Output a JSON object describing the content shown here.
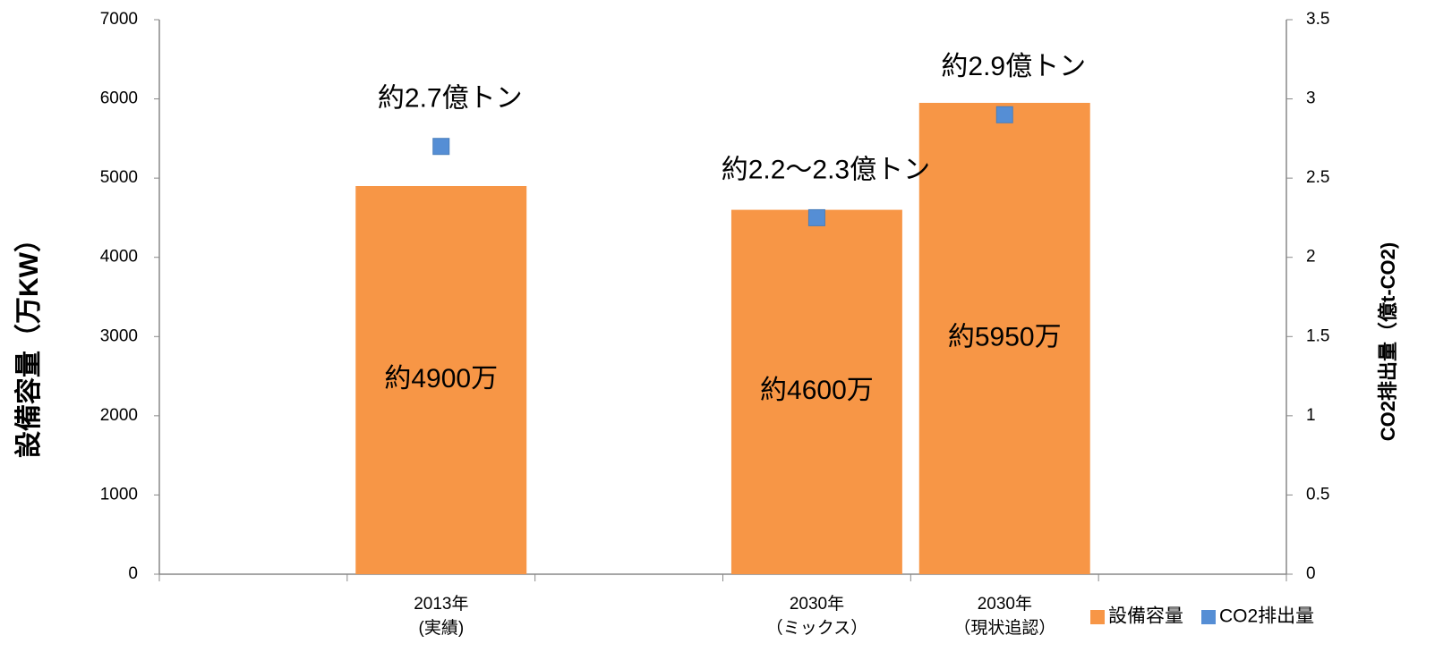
{
  "chart_data": {
    "type": "bar",
    "categories": [
      null,
      "2013年\n(実績)",
      null,
      "2030年\n（ミックス）",
      "2030年\n（現状追認）",
      null
    ],
    "series": [
      {
        "name": "設備容量",
        "type": "bar",
        "color": "#f79646",
        "values": [
          null,
          4900,
          null,
          4600,
          5950,
          null
        ],
        "value_labels": [
          null,
          "約4900万",
          null,
          "約4600万",
          "約5950万",
          null
        ]
      },
      {
        "name": "CO2排出量",
        "type": "scatter",
        "axis": "y2",
        "color": "#558ed5",
        "values": [
          null,
          2.7,
          null,
          2.25,
          2.9,
          null
        ],
        "value_labels": [
          null,
          "約2.7億トン",
          null,
          "約2.2～2.3億トン",
          "約2.9億トン",
          null
        ]
      }
    ],
    "ylabel": "設備容量（万KW）",
    "y2label": "CO2排出量（億t-CO2)",
    "ylim": [
      0,
      7000
    ],
    "yticks": [
      0,
      1000,
      2000,
      3000,
      4000,
      5000,
      6000,
      7000
    ],
    "y2lim": [
      0,
      3.5
    ],
    "y2ticks": [
      0,
      0.5,
      1,
      1.5,
      2,
      2.5,
      3,
      3.5
    ],
    "legend": "bottom-right",
    "grid": false
  }
}
